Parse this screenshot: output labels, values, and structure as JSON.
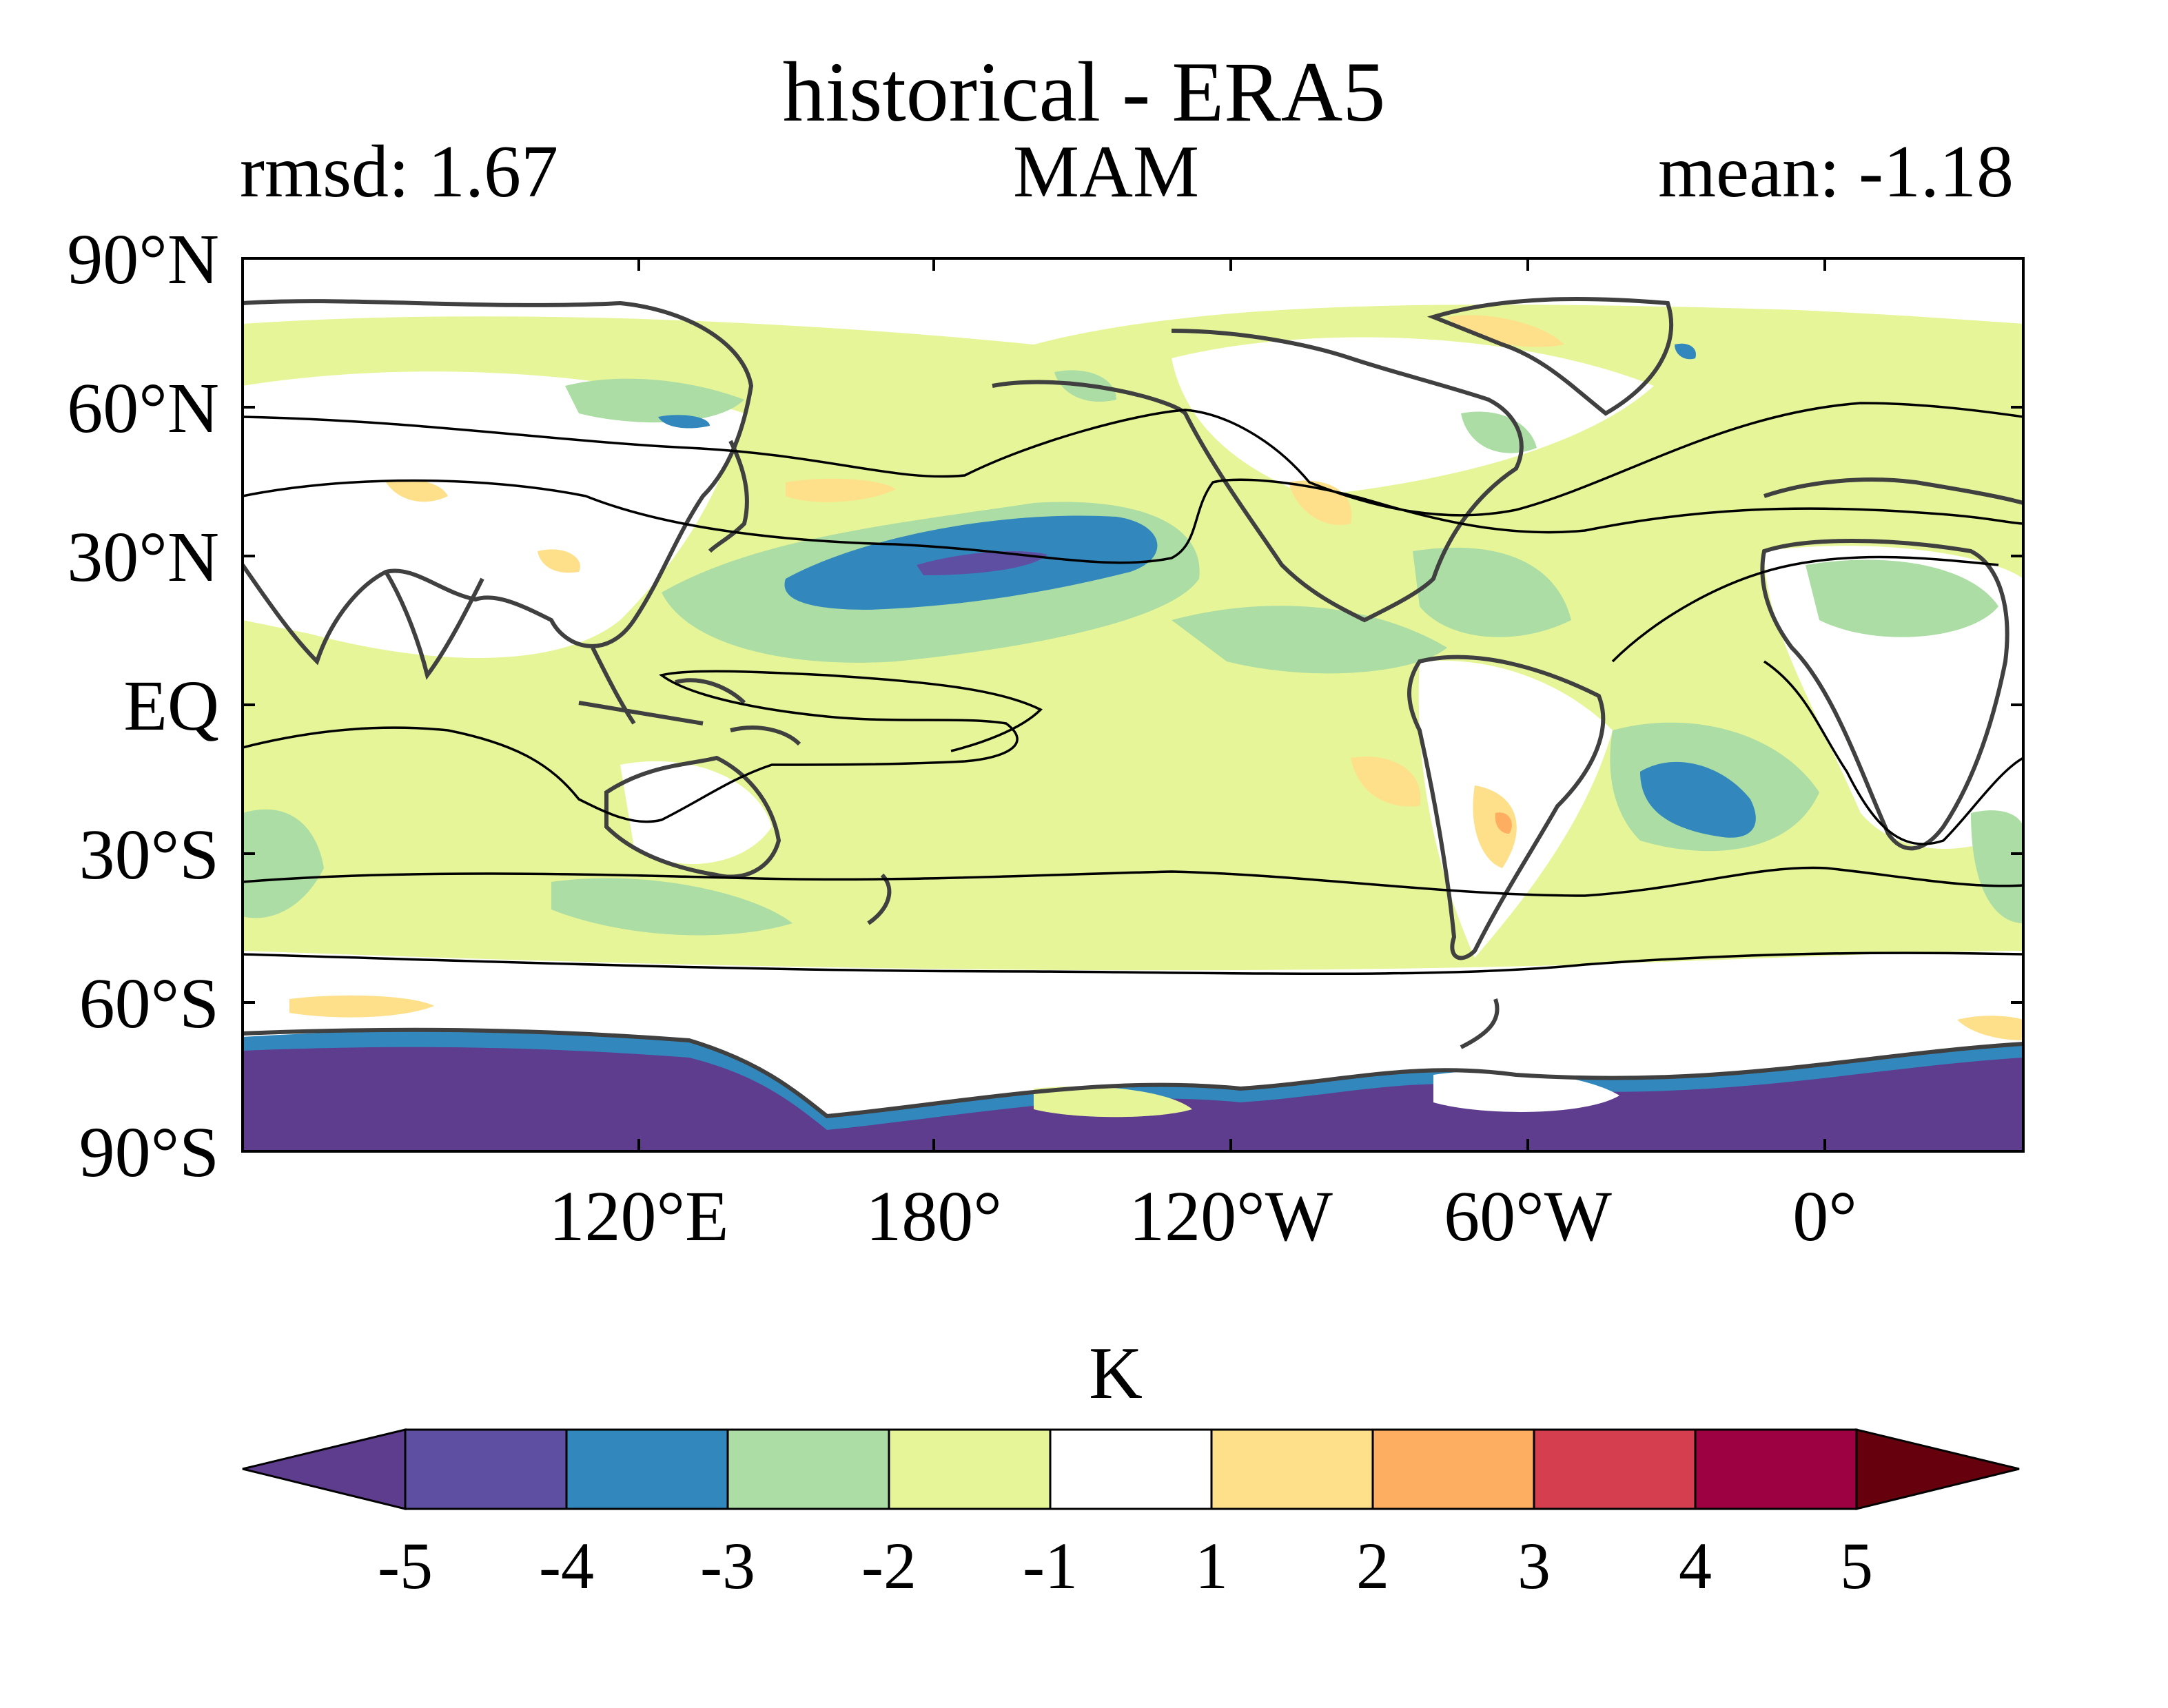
{
  "title": "historical - ERA5",
  "stats": {
    "rmsd_label": "rmsd: 1.67",
    "season": "MAM",
    "mean_label": "mean: -1.18"
  },
  "map": {
    "type": "filled-contour-map",
    "projection": "equirectangular",
    "lon_range": [
      60,
      420
    ],
    "lat_range": [
      -90,
      90
    ],
    "y_ticks": [
      {
        "lat": 90,
        "label": "90°N"
      },
      {
        "lat": 60,
        "label": "60°N"
      },
      {
        "lat": 30,
        "label": "30°N"
      },
      {
        "lat": 0,
        "label": "EQ"
      },
      {
        "lat": -30,
        "label": "30°S"
      },
      {
        "lat": -60,
        "label": "60°S"
      },
      {
        "lat": -90,
        "label": "90°S"
      }
    ],
    "x_ticks": [
      {
        "lon": 120,
        "label": "120°E"
      },
      {
        "lon": 180,
        "label": "180°"
      },
      {
        "lon": 240,
        "label": "120°W"
      },
      {
        "lon": 300,
        "label": "60°W"
      },
      {
        "lon": 360,
        "label": "0°"
      }
    ],
    "colors": {
      "coastline": "#404040",
      "contour": "#000000",
      "background": "#ffffff"
    }
  },
  "colorbar": {
    "unit": "K",
    "levels": [
      -5,
      -4,
      -3,
      -2,
      -1,
      1,
      2,
      3,
      4,
      5
    ],
    "tick_labels": [
      "-5",
      "-4",
      "-3",
      "-2",
      "-1",
      "1",
      "2",
      "3",
      "4",
      "5"
    ],
    "colors": [
      "#5e4fa2",
      "#3288bd",
      "#abdda4",
      "#e6f598",
      "#ffffff",
      "#fee08b",
      "#fdae61",
      "#d53e4f",
      "#9e0142"
    ],
    "under_color": "#5e3c8e",
    "over_color": "#67000d",
    "extend": "both"
  }
}
